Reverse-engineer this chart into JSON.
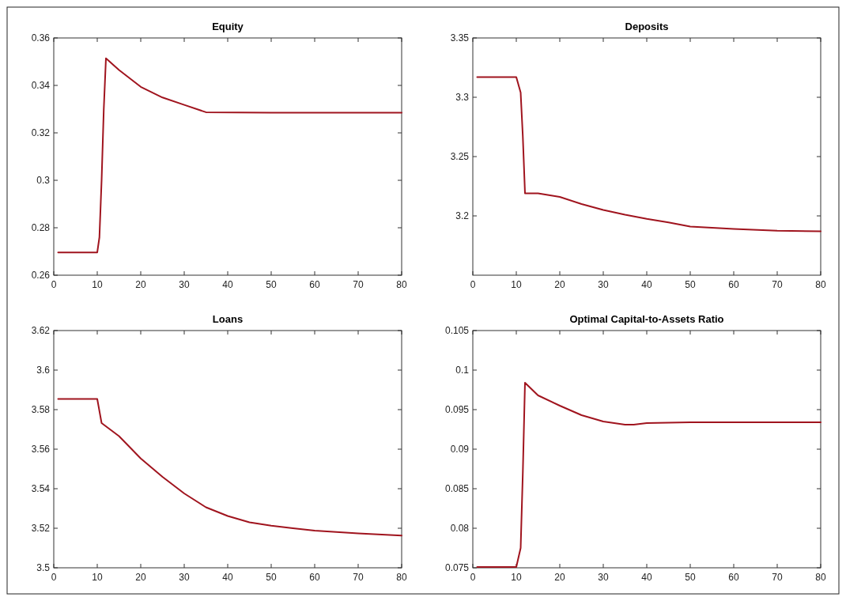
{
  "chart_data": [
    {
      "type": "line",
      "title": "Equity",
      "x": [
        1,
        10,
        10.5,
        11,
        11.5,
        12,
        15,
        20,
        25,
        30,
        35,
        50,
        80
      ],
      "series": [
        {
          "color": "#a0141e",
          "values": [
            0.2696,
            0.2696,
            0.276,
            0.3,
            0.33,
            0.3514,
            0.3465,
            0.3394,
            0.3349,
            0.3318,
            0.3287,
            0.3285,
            0.3285
          ]
        }
      ],
      "xlim": [
        0,
        80
      ],
      "xticks": [
        0,
        10,
        20,
        30,
        40,
        50,
        60,
        70,
        80
      ],
      "ylim": [
        0.26,
        0.36
      ],
      "yticks": [
        0.26,
        0.28,
        0.3,
        0.32,
        0.34,
        0.36
      ]
    },
    {
      "type": "line",
      "title": "Deposits",
      "x": [
        1,
        10,
        11,
        11.5,
        12,
        15,
        20,
        25,
        30,
        35,
        40,
        45,
        50,
        60,
        70,
        80
      ],
      "series": [
        {
          "color": "#a0141e",
          "values": [
            3.317,
            3.317,
            3.304,
            3.267,
            3.219,
            3.219,
            3.216,
            3.21,
            3.205,
            3.201,
            3.1975,
            3.1945,
            3.191,
            3.189,
            3.1875,
            3.187
          ]
        }
      ],
      "xlim": [
        0,
        80
      ],
      "xticks": [
        0,
        10,
        20,
        30,
        40,
        50,
        60,
        70,
        80
      ],
      "ylim": [
        3.15,
        3.35
      ],
      "yticks": [
        3.2,
        3.25,
        3.3,
        3.35
      ]
    },
    {
      "type": "line",
      "title": "Loans",
      "x": [
        1,
        10,
        11,
        15,
        20,
        25,
        30,
        35,
        40,
        45,
        50,
        55,
        60,
        70,
        80
      ],
      "series": [
        {
          "color": "#a0141e",
          "values": [
            3.5854,
            3.5854,
            3.5732,
            3.5666,
            3.5553,
            3.546,
            3.5376,
            3.5306,
            3.5262,
            3.523,
            3.5213,
            3.52,
            3.5188,
            3.5174,
            3.5163
          ]
        }
      ],
      "xlim": [
        0,
        80
      ],
      "xticks": [
        0,
        10,
        20,
        30,
        40,
        50,
        60,
        70,
        80
      ],
      "ylim": [
        3.5,
        3.62
      ],
      "yticks": [
        3.5,
        3.52,
        3.54,
        3.56,
        3.58,
        3.6,
        3.62
      ]
    },
    {
      "type": "line",
      "title": "Optimal Capital-to-Assets Ratio",
      "x": [
        1,
        10,
        11,
        11.5,
        12,
        15,
        20,
        25,
        30,
        35,
        37,
        40,
        50,
        60,
        80
      ],
      "series": [
        {
          "color": "#a0141e",
          "values": [
            0.0751,
            0.0751,
            0.0775,
            0.087,
            0.0984,
            0.0968,
            0.0955,
            0.0943,
            0.0935,
            0.0931,
            0.0931,
            0.0933,
            0.0934,
            0.0934,
            0.0934
          ]
        }
      ],
      "xlim": [
        0,
        80
      ],
      "xticks": [
        0,
        10,
        20,
        30,
        40,
        50,
        60,
        70,
        80
      ],
      "ylim": [
        0.075,
        0.105
      ],
      "yticks": [
        0.075,
        0.08,
        0.085,
        0.09,
        0.095,
        0.1,
        0.105
      ]
    }
  ]
}
